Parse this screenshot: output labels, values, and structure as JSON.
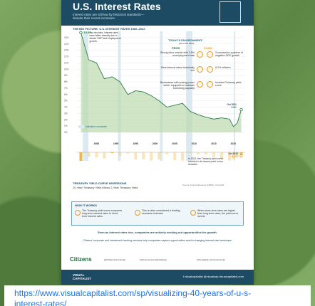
{
  "page": {
    "title": "U.S. Interest Rates",
    "subtitle": "Interest rates are still low by historical standards—despite their recent increases.",
    "big_picture": "THE BIG PICTURE: U.S. INTEREST RATES 1960–2022",
    "today_env": "TODAY'S ENVIRONMENT:",
    "today_env_date": "(as of Oct 2022)",
    "pros_label": "PROS",
    "cons_label": "CONS",
    "peak_label": "15.8%",
    "peak_note": "For decades, interest rates have fallen steadily due to slower GDP and employment growth.",
    "latest_label": "Oct 2022",
    "latest_value": "3.6%",
    "inversion_date": "Oct 2022",
    "inversion_value": "-0.5%",
    "recession_label": "Indicates a recession",
    "inversion_note": "In 2022, the Treasury yield curve inverted to its lowest point in two decades.",
    "section2_title": "TREASURY YIELD CURVE INVERSIONS",
    "section2_sub": "10-Year Treasury Yield Minus 2-Year Treasury Yield",
    "source": "Source: Federal Reserve (FRED), Oct 2022",
    "how_title": "HOW IT WORKS",
    "how_items": [
      "The Treasury yield curve compares long-term interest rates to short-term interest rates",
      "This is often considered a leading recession indicator",
      "When short-term rates are higher than long-term rates, the yield curve inverts"
    ],
    "cta": "Even as interest rates rise, companies are actively seeking out opportunities for growth.",
    "cta2": "Citizens' corporate and investment banking services help companies capture opportunities amid a changing interest rate landscape.",
    "citizens": "Citizens",
    "social_1": "@CitizensCommercial",
    "social_2": "citizens-commercial-banking",
    "social_3": "citizensbank.com/commercial",
    "footer_brand_1": "VISUAL",
    "footer_brand_2": "CAPITALIST",
    "footer_social": "f  visualcapitalist   @visualcap   visualcapitalist.com",
    "url_line1": "https://www.visualcapitalist.com/sp/visualizing-40-years-of-u-s-",
    "url_line2": "interest-rates/"
  },
  "insights": [
    {
      "pro": "Strong labor market with 3.5% unemployment rate",
      "con": "3 successive quarters of negative GDP growth"
    },
    {
      "pro": "Real interest rates historically low",
      "con": "8.2% inflation"
    },
    {
      "pro": "Businesses with pricing power better equipped to maintain borrowing capacity",
      "con": "Inverted Treasury yield curve"
    }
  ],
  "chart_data": [
    {
      "type": "area",
      "title": "THE BIG PICTURE: U.S. INTEREST RATES 1960–2022",
      "x_ticks": [
        "1985",
        "1990",
        "1995",
        "2000",
        "2005",
        "2010",
        "2015",
        "2020"
      ],
      "y_ticks": [
        "15%",
        "14%",
        "13%",
        "12%",
        "11%",
        "10%",
        "9%",
        "8%",
        "7%",
        "6%",
        "5%",
        "4%",
        "3%",
        "2%",
        "1%",
        "0%"
      ],
      "x": [
        1981,
        1983,
        1985,
        1987,
        1989,
        1991,
        1993,
        1995,
        1997,
        1999,
        2001,
        2003,
        2005,
        2007,
        2009,
        2011,
        2013,
        2015,
        2017,
        2019,
        2020,
        2021,
        2022
      ],
      "y": [
        15.8,
        11.5,
        11.0,
        8.5,
        8.8,
        8.0,
        6.0,
        6.6,
        6.4,
        5.8,
        5.0,
        4.0,
        4.3,
        4.6,
        3.3,
        2.8,
        2.4,
        2.1,
        2.3,
        2.1,
        0.9,
        1.5,
        3.6
      ],
      "ylim": [
        0,
        16
      ],
      "recessions": [
        [
          1981.5,
          1982.9
        ],
        [
          1990.5,
          1991.2
        ],
        [
          2001.2,
          2001.9
        ],
        [
          2007.9,
          2009.5
        ],
        [
          2020.1,
          2020.4
        ]
      ]
    },
    {
      "type": "area",
      "title": "TREASURY YIELD CURVE INVERSIONS",
      "x": [
        1981,
        1983,
        1985,
        1987,
        1989,
        1991,
        1993,
        1995,
        1997,
        1999,
        2001,
        2003,
        2005,
        2007,
        2009,
        2011,
        2013,
        2015,
        2017,
        2019,
        2020,
        2021,
        2022
      ],
      "y": [
        -1.2,
        1.5,
        1.2,
        0.8,
        -0.1,
        1.8,
        2.5,
        0.4,
        0.5,
        0.1,
        0.5,
        2.3,
        0.2,
        0.1,
        2.7,
        2.3,
        2.2,
        1.4,
        0.6,
        0.1,
        0.5,
        1.2,
        -0.5
      ],
      "ylim": [
        -2,
        3
      ]
    }
  ]
}
